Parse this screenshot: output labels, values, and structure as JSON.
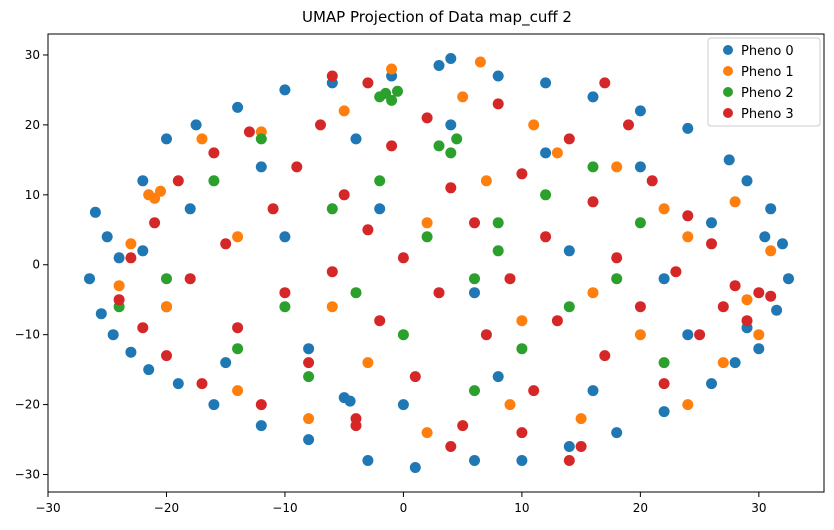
{
  "chart_data": {
    "type": "scatter",
    "title": "UMAP Projection of Data map_cuff 2",
    "xlabel": "",
    "ylabel": "",
    "xlim": [
      -30,
      35.5
    ],
    "ylim": [
      -32.5,
      33
    ],
    "xticks": [
      -30,
      -20,
      -10,
      0,
      10,
      20,
      30
    ],
    "yticks": [
      -30,
      -20,
      -10,
      0,
      10,
      20,
      30
    ],
    "xtick_labels": [
      "−30",
      "−20",
      "−10",
      "0",
      "10",
      "20",
      "30"
    ],
    "ytick_labels": [
      "−30",
      "−20",
      "−10",
      "0",
      "10",
      "20",
      "30"
    ],
    "grid": false,
    "legend_position": "top-right",
    "series": [
      {
        "name": "Pheno 0",
        "color": "#1f77b4",
        "points": [
          [
            -26.5,
            -2
          ],
          [
            -26,
            7.5
          ],
          [
            -25.5,
            -7
          ],
          [
            -25,
            4
          ],
          [
            -24.5,
            -10
          ],
          [
            -24,
            1
          ],
          [
            -23,
            -12.5
          ],
          [
            -22,
            12
          ],
          [
            -21.5,
            -15
          ],
          [
            -20,
            18
          ],
          [
            -19,
            -17
          ],
          [
            -17.5,
            20
          ],
          [
            -16,
            -20
          ],
          [
            -14,
            22.5
          ],
          [
            -12,
            -23
          ],
          [
            -10,
            25
          ],
          [
            -8,
            -25
          ],
          [
            -6,
            26
          ],
          [
            -5,
            -19
          ],
          [
            -4.5,
            -19.5
          ],
          [
            -3,
            -28
          ],
          [
            -1,
            27
          ],
          [
            1,
            -29
          ],
          [
            3,
            28.5
          ],
          [
            4,
            29.5
          ],
          [
            6,
            -28
          ],
          [
            8,
            27
          ],
          [
            10,
            -28
          ],
          [
            12,
            26
          ],
          [
            14,
            -26
          ],
          [
            16,
            24
          ],
          [
            18,
            -24
          ],
          [
            20,
            22
          ],
          [
            22,
            -21
          ],
          [
            24,
            19.5
          ],
          [
            26,
            -17
          ],
          [
            27.5,
            15
          ],
          [
            29,
            12
          ],
          [
            30,
            -12
          ],
          [
            31,
            8
          ],
          [
            32,
            3
          ],
          [
            32.5,
            -2
          ],
          [
            31.5,
            -6.5
          ],
          [
            30.5,
            4
          ],
          [
            29,
            -9
          ],
          [
            28,
            -14
          ],
          [
            -22,
            2
          ],
          [
            -20,
            -6
          ],
          [
            -18,
            8
          ],
          [
            -15,
            -14
          ],
          [
            -12,
            14
          ],
          [
            -8,
            -12
          ],
          [
            -4,
            18
          ],
          [
            0,
            -20
          ],
          [
            4,
            20
          ],
          [
            8,
            -16
          ],
          [
            12,
            16
          ],
          [
            16,
            -18
          ],
          [
            20,
            14
          ],
          [
            24,
            -10
          ],
          [
            26,
            6
          ],
          [
            -10,
            4
          ],
          [
            6,
            -4
          ],
          [
            14,
            2
          ],
          [
            -2,
            8
          ],
          [
            22,
            -2
          ]
        ]
      },
      {
        "name": "Pheno 1",
        "color": "#ff7f0e",
        "points": [
          [
            -21.5,
            10
          ],
          [
            -21,
            9.5
          ],
          [
            -20.5,
            10.5
          ],
          [
            -24,
            -3
          ],
          [
            -23,
            3
          ],
          [
            -20,
            -6
          ],
          [
            -17,
            18
          ],
          [
            -14,
            -18
          ],
          [
            -12,
            19
          ],
          [
            -8,
            -22
          ],
          [
            -5,
            22
          ],
          [
            -1,
            28
          ],
          [
            2,
            -24
          ],
          [
            5,
            24
          ],
          [
            6.5,
            29
          ],
          [
            9,
            -20
          ],
          [
            11,
            20
          ],
          [
            13,
            16
          ],
          [
            15,
            -22
          ],
          [
            18,
            14
          ],
          [
            20,
            -10
          ],
          [
            22,
            8
          ],
          [
            24,
            -20
          ],
          [
            27,
            -14
          ],
          [
            28,
            9
          ],
          [
            29,
            -5
          ],
          [
            30,
            -10
          ],
          [
            31,
            2
          ],
          [
            -6,
            -6
          ],
          [
            2,
            6
          ],
          [
            10,
            -8
          ],
          [
            -14,
            4
          ],
          [
            16,
            -4
          ],
          [
            24,
            4
          ],
          [
            -3,
            -14
          ],
          [
            7,
            12
          ]
        ]
      },
      {
        "name": "Pheno 2",
        "color": "#2ca02c",
        "points": [
          [
            -1.5,
            24.5
          ],
          [
            -1,
            23.5
          ],
          [
            -2,
            24
          ],
          [
            -0.5,
            24.8
          ],
          [
            3,
            17
          ],
          [
            4,
            16
          ],
          [
            4.5,
            18
          ],
          [
            -24,
            -6
          ],
          [
            -20,
            -2
          ],
          [
            -16,
            12
          ],
          [
            -14,
            -12
          ],
          [
            -10,
            -6
          ],
          [
            -6,
            8
          ],
          [
            -4,
            -4
          ],
          [
            0,
            -10
          ],
          [
            2,
            4
          ],
          [
            6,
            -2
          ],
          [
            8,
            6
          ],
          [
            10,
            -12
          ],
          [
            12,
            10
          ],
          [
            14,
            -6
          ],
          [
            16,
            14
          ],
          [
            18,
            -2
          ],
          [
            20,
            6
          ],
          [
            22,
            -14
          ],
          [
            -12,
            18
          ],
          [
            -8,
            -16
          ],
          [
            6,
            -18
          ],
          [
            -2,
            12
          ],
          [
            8,
            2
          ]
        ]
      },
      {
        "name": "Pheno 3",
        "color": "#d62728",
        "points": [
          [
            -24,
            -5
          ],
          [
            -23,
            1
          ],
          [
            -22,
            -9
          ],
          [
            -21,
            6
          ],
          [
            -20,
            -13
          ],
          [
            -19,
            12
          ],
          [
            -18,
            -2
          ],
          [
            -17,
            -17
          ],
          [
            -16,
            16
          ],
          [
            -15,
            3
          ],
          [
            -14,
            -9
          ],
          [
            -13,
            19
          ],
          [
            -12,
            -20
          ],
          [
            -11,
            8
          ],
          [
            -10,
            -4
          ],
          [
            -9,
            14
          ],
          [
            -8,
            -14
          ],
          [
            -7,
            20
          ],
          [
            -6,
            -1
          ],
          [
            -5,
            10
          ],
          [
            -4,
            -22
          ],
          [
            -3,
            5
          ],
          [
            -2,
            -8
          ],
          [
            -1,
            17
          ],
          [
            0,
            1
          ],
          [
            1,
            -16
          ],
          [
            2,
            21
          ],
          [
            3,
            -4
          ],
          [
            4,
            11
          ],
          [
            5,
            -23
          ],
          [
            6,
            6
          ],
          [
            7,
            -10
          ],
          [
            8,
            23
          ],
          [
            9,
            -2
          ],
          [
            10,
            13
          ],
          [
            11,
            -18
          ],
          [
            12,
            4
          ],
          [
            13,
            -8
          ],
          [
            14,
            18
          ],
          [
            15,
            -26
          ],
          [
            16,
            9
          ],
          [
            17,
            -13
          ],
          [
            18,
            1
          ],
          [
            19,
            20
          ],
          [
            20,
            -6
          ],
          [
            21,
            12
          ],
          [
            22,
            -17
          ],
          [
            23,
            -1
          ],
          [
            24,
            7
          ],
          [
            25,
            -10
          ],
          [
            26,
            3
          ],
          [
            27,
            -6
          ],
          [
            28,
            -3
          ],
          [
            29,
            -8
          ],
          [
            30,
            -4
          ],
          [
            31,
            -4.5
          ],
          [
            -6,
            27
          ],
          [
            -3,
            26
          ],
          [
            17,
            26
          ],
          [
            -4,
            -23
          ],
          [
            4,
            -26
          ],
          [
            14,
            -28
          ],
          [
            10,
            -24
          ]
        ]
      }
    ]
  }
}
